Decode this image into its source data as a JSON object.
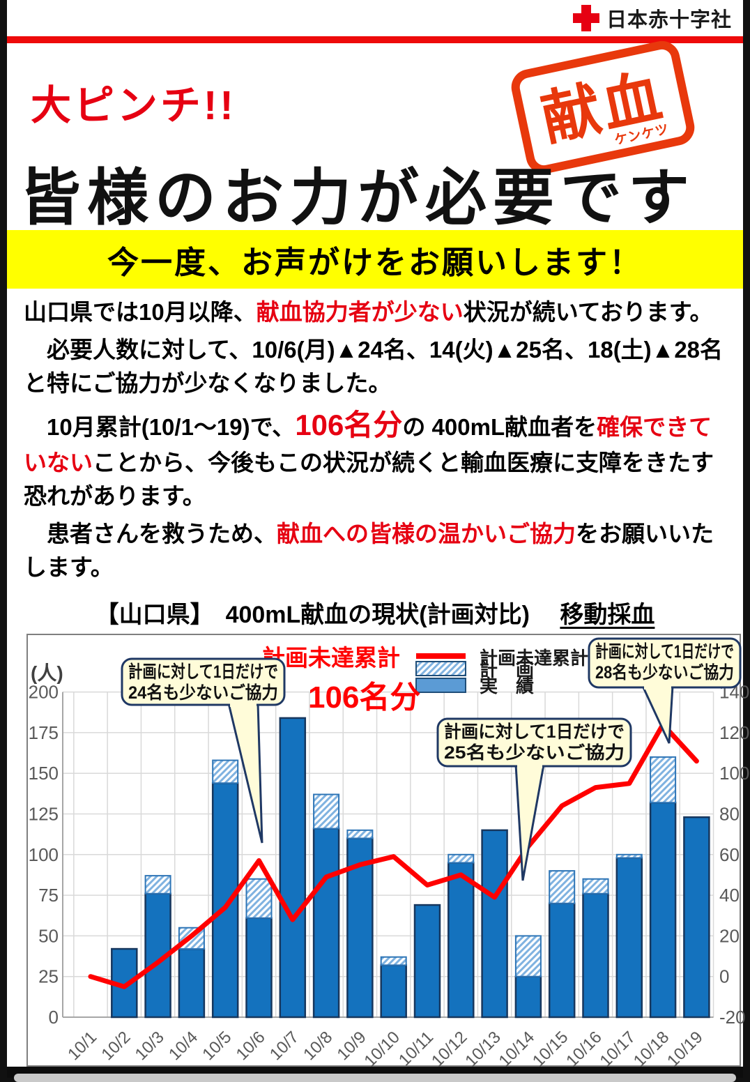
{
  "header": {
    "org_name": "日本赤十字社"
  },
  "hero": {
    "alert": "大ピンチ!!",
    "stamp": {
      "main": "献血",
      "ruby": "ケンケツ"
    },
    "headline": "皆様のお力が必要です"
  },
  "banner": {
    "text": "今一度、お声がけをお願いします！"
  },
  "paragraphs": [
    [
      {
        "t": "山口県では10月以降、"
      },
      {
        "t": "献血協力者が少ない",
        "s": "red"
      },
      {
        "t": "状況が続いております。"
      }
    ],
    [
      {
        "t": "　必要人数に対して、10/6(月)▲24名、14(火)▲25名、18(土)▲28名と特にご協力が少なくなりました。"
      }
    ],
    [
      {
        "t": "　10月累計(10/1～19)で、"
      },
      {
        "t": "106名分",
        "s": "red-big"
      },
      {
        "t": "の 400mL献血者を"
      },
      {
        "t": "確保できていない",
        "s": "red"
      },
      {
        "t": "ことから、今後もこの状況が続くと輸血医療に支障をきたす恐れがあります。"
      }
    ],
    [
      {
        "t": "　患者さんを救うため、"
      },
      {
        "t": "献血への皆様の温かいご協力",
        "s": "red"
      },
      {
        "t": "をお願いいたします。"
      }
    ]
  ],
  "chart_title_segments": [
    {
      "t": "【山口県】　"
    },
    {
      "t": "400mL献血の現状(計画対比)"
    },
    {
      "t": "　 "
    },
    {
      "t": "移動採血",
      "s": "underline"
    }
  ],
  "chart_data": {
    "type": "combo-bar-line",
    "title": "【山口県】 400mL献血の現状(計画対比) 移動採血",
    "categories": [
      "10/1",
      "10/2",
      "10/3",
      "10/4",
      "10/5",
      "10/6",
      "10/7",
      "10/8",
      "10/9",
      "10/10",
      "10/11",
      "10/12",
      "10/13",
      "10/14",
      "10/15",
      "10/16",
      "10/17",
      "10/18",
      "10/19"
    ],
    "series": [
      {
        "name": "実　績",
        "type": "bar",
        "style": "solid",
        "values": [
          0,
          42,
          76,
          42,
          144,
          61,
          184,
          116,
          110,
          32,
          69,
          95,
          115,
          25,
          70,
          76,
          98,
          132,
          123
        ]
      },
      {
        "name": "計　画",
        "type": "bar",
        "style": "hatched",
        "values": [
          null,
          null,
          87,
          55,
          158,
          85,
          null,
          137,
          115,
          37,
          null,
          100,
          null,
          50,
          90,
          85,
          100,
          160,
          null
        ]
      },
      {
        "name": "計画未達累計",
        "type": "line",
        "axis": "right",
        "values": [
          0,
          -5,
          7,
          20,
          34,
          57,
          28,
          49,
          55,
          59,
          45,
          50,
          39,
          64,
          84,
          93,
          95,
          124,
          106
        ]
      }
    ],
    "left_axis": {
      "title": "(人)",
      "min": 0,
      "max": 200,
      "step": 25
    },
    "right_axis": {
      "min": -20,
      "max": 140,
      "step": 20
    },
    "legend": [
      "計画未達累計",
      "計　画",
      "実　績"
    ],
    "annotations": {
      "line_label": "計画未達累計",
      "line_total": "106名分",
      "callouts": [
        {
          "lines": [
            "計画に対して1日だけで",
            "24名も少ないご協力"
          ],
          "target": "10/6"
        },
        {
          "lines": [
            "計画に対して1日だけで",
            "25名も少ないご協力"
          ],
          "target": "10/14"
        },
        {
          "lines": [
            "計画に対して1日だけで",
            "28名も少ないご協力"
          ],
          "target": "10/18"
        }
      ]
    },
    "colors": {
      "accent_red": "#e60012",
      "line_red": "#ff0000",
      "bar_fill": "#1472be",
      "bar_border": "#17375e",
      "hatch_stroke": "#7fb2e0",
      "hatch_border": "#2e75b6",
      "legend_solid": "#5b9bd5",
      "grid": "#d9d9d9",
      "axis_line": "#a6a6a6",
      "tick_text": "#595959",
      "callout_bg": "#fffcd9",
      "callout_border": "#1f3864"
    }
  }
}
